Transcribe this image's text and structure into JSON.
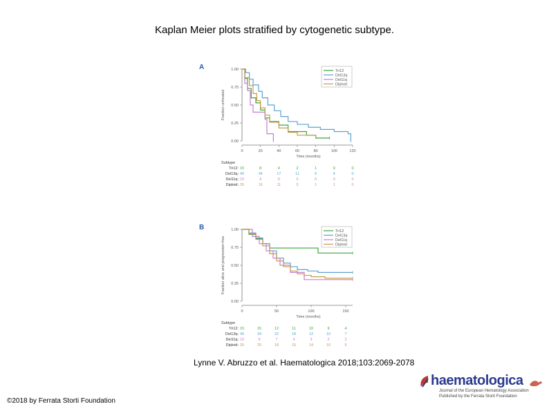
{
  "slide": {
    "title": "Kaplan Meier plots stratified by cytogenetic subtype.",
    "citation": "Lynne V. Abruzzo et al. Haematologica 2018;103:2069-2078",
    "copyright": "©2018 by Ferrata Storti Foundation"
  },
  "logo": {
    "name": "haematologica",
    "line1": "Journal of the European Hematology Association",
    "line2": "Published by the Ferrata Storti Foundation"
  },
  "colors": {
    "Tri12": "#3aa53a",
    "Del13q": "#5ba3cf",
    "Del11q": "#c77ad6",
    "Diploid": "#c79a4a"
  },
  "chart_data": [
    {
      "type": "line",
      "panel": "A",
      "title": "",
      "xlabel": "Time (months)",
      "ylabel": "Fraction untreated",
      "xlim": [
        0,
        120
      ],
      "ylim": [
        0,
        1
      ],
      "x_ticks": [
        "0",
        "20",
        "40",
        "60",
        "80",
        "100",
        "120"
      ],
      "y_ticks": [
        "0.00",
        "0.25",
        "0.50",
        "0.75",
        "1.00"
      ],
      "legend": {
        "position": "top-right",
        "entries": [
          "Tri12",
          "Del13q",
          "Del11q",
          "Diploid"
        ]
      },
      "series": [
        {
          "name": "Tri12",
          "x": [
            0,
            3,
            6,
            10,
            15,
            20,
            25,
            30,
            40,
            50,
            60,
            70,
            80,
            95
          ],
          "y": [
            1.0,
            0.87,
            0.73,
            0.6,
            0.53,
            0.43,
            0.32,
            0.27,
            0.22,
            0.13,
            0.13,
            0.08,
            0.04,
            0.04
          ]
        },
        {
          "name": "Del13q",
          "x": [
            0,
            4,
            8,
            12,
            18,
            22,
            28,
            35,
            42,
            50,
            60,
            72,
            85,
            100,
            115,
            118
          ],
          "y": [
            1.0,
            0.95,
            0.86,
            0.78,
            0.69,
            0.6,
            0.5,
            0.42,
            0.34,
            0.27,
            0.23,
            0.19,
            0.16,
            0.13,
            0.1,
            0.0
          ]
        },
        {
          "name": "Del11q",
          "x": [
            0,
            3,
            6,
            9,
            12,
            18,
            25,
            27,
            30,
            34
          ],
          "y": [
            1.0,
            0.8,
            0.7,
            0.5,
            0.4,
            0.4,
            0.3,
            0.1,
            0.1,
            0.0
          ]
        },
        {
          "name": "Diploid",
          "x": [
            0,
            3,
            8,
            12,
            16,
            20,
            25,
            30,
            40,
            50,
            60,
            80
          ],
          "y": [
            1.0,
            0.88,
            0.77,
            0.66,
            0.56,
            0.46,
            0.36,
            0.26,
            0.18,
            0.12,
            0.08,
            0.05
          ]
        }
      ],
      "risk_table": {
        "header": "Subtype",
        "times": [
          0,
          20,
          40,
          60,
          80,
          100,
          120
        ],
        "rows": [
          {
            "label": "Tri12:",
            "values": [
              "15",
              "8",
              "4",
              "2",
              "1",
              "0",
              "0"
            ]
          },
          {
            "label": "Del13q:",
            "values": [
              "40",
              "34",
              "17",
              "11",
              "6",
              "4",
              "0"
            ]
          },
          {
            "label": "Del11q:",
            "values": [
              "10",
              "4",
              "0",
              "0",
              "0",
              "0",
              "0"
            ]
          },
          {
            "label": "Diploid:",
            "values": [
              "35",
              "16",
              "11",
              "5",
              "1",
              "1",
              "0"
            ]
          }
        ]
      }
    },
    {
      "type": "line",
      "panel": "B",
      "title": "",
      "xlabel": "Time (months)",
      "ylabel": "Fraction alive and progression-free",
      "xlim": [
        0,
        160
      ],
      "ylim": [
        0,
        1
      ],
      "x_ticks": [
        "0",
        "50",
        "100",
        "150"
      ],
      "y_ticks": [
        "0.00",
        "0.25",
        "0.50",
        "0.75",
        "1.00"
      ],
      "legend": {
        "position": "top-right",
        "entries": [
          "Tri12",
          "Del13q",
          "Del11q",
          "Diploid"
        ]
      },
      "series": [
        {
          "name": "Tri12",
          "x": [
            0,
            10,
            20,
            30,
            40,
            55,
            65,
            75,
            95,
            110,
            135,
            160
          ],
          "y": [
            1.0,
            0.93,
            0.87,
            0.8,
            0.74,
            0.74,
            0.74,
            0.74,
            0.74,
            0.67,
            0.67,
            0.67
          ]
        },
        {
          "name": "Del13q",
          "x": [
            0,
            10,
            20,
            30,
            40,
            50,
            60,
            70,
            80,
            95,
            110,
            130,
            150,
            160
          ],
          "y": [
            1.0,
            0.95,
            0.88,
            0.8,
            0.7,
            0.6,
            0.53,
            0.48,
            0.44,
            0.42,
            0.4,
            0.4,
            0.4,
            0.4
          ]
        },
        {
          "name": "Del11q",
          "x": [
            0,
            15,
            25,
            35,
            45,
            55,
            70,
            90,
            110,
            140,
            160
          ],
          "y": [
            1.0,
            0.9,
            0.8,
            0.7,
            0.6,
            0.5,
            0.4,
            0.3,
            0.3,
            0.3,
            0.3
          ]
        },
        {
          "name": "Diploid",
          "x": [
            0,
            10,
            20,
            30,
            40,
            50,
            60,
            70,
            80,
            90,
            100,
            120,
            140,
            160
          ],
          "y": [
            1.0,
            0.94,
            0.86,
            0.77,
            0.66,
            0.56,
            0.48,
            0.42,
            0.38,
            0.36,
            0.34,
            0.32,
            0.32,
            0.32
          ]
        }
      ],
      "risk_table": {
        "header": "Subtype",
        "times": [
          0,
          25,
          50,
          75,
          100,
          125,
          150
        ],
        "rows": [
          {
            "label": "Tri12:",
            "values": [
              "15",
              "15",
              "12",
              "11",
              "10",
              "9",
              "4"
            ]
          },
          {
            "label": "Del13q:",
            "values": [
              "40",
              "34",
              "22",
              "18",
              "12",
              "10",
              "7"
            ]
          },
          {
            "label": "Del11q:",
            "values": [
              "10",
              "9",
              "7",
              "4",
              "3",
              "2",
              "2"
            ]
          },
          {
            "label": "Diploid:",
            "values": [
              "35",
              "25",
              "18",
              "15",
              "14",
              "10",
              "5"
            ]
          }
        ]
      }
    }
  ]
}
